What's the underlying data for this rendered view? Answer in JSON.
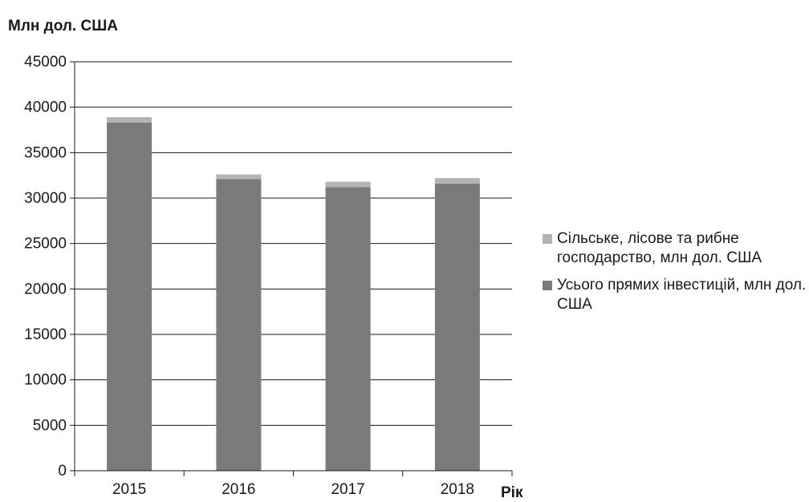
{
  "chart_data": {
    "type": "bar",
    "stacked": true,
    "ylabel": "Млн дол. США",
    "xlabel": "Рік",
    "categories": [
      "2015",
      "2016",
      "2017",
      "2018"
    ],
    "ylim": [
      0,
      45000
    ],
    "yticks": [
      "0",
      "5000",
      "10000",
      "15000",
      "20000",
      "25000",
      "30000",
      "35000",
      "40000",
      "45000"
    ],
    "grid": true,
    "legend_position": "right",
    "series": [
      {
        "name": "Усього прямих інвестицій, млн дол. США",
        "color": "#7a7a7c",
        "values": [
          38300,
          32100,
          31200,
          31600
        ]
      },
      {
        "name": "Сільське, лісове та рибне господарство, млн дол. США",
        "color": "#b3b3b5",
        "values": [
          600,
          500,
          600,
          600
        ]
      }
    ]
  },
  "legend": {
    "items": [
      {
        "label": "Сільське, лісове та рибне господарство, млн дол. США",
        "color": "#b3b3b5"
      },
      {
        "label": "Усього прямих інвестицій, млн дол. США",
        "color": "#7a7a7c"
      }
    ]
  }
}
